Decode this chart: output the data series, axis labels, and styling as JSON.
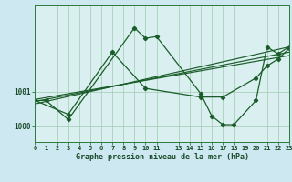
{
  "xlabel": "Graphe pression niveau de la mer (hPa)",
  "bg_color": "#cde8f0",
  "plot_bg_color": "#daf0f0",
  "grid_color": "#aacfbb",
  "line_color": "#1a5c2a",
  "xlim": [
    0,
    23
  ],
  "ylim": [
    999.55,
    1003.5
  ],
  "xticks": [
    0,
    1,
    2,
    3,
    4,
    5,
    6,
    7,
    8,
    9,
    10,
    11,
    13,
    14,
    15,
    16,
    17,
    18,
    19,
    20,
    21,
    22,
    23
  ],
  "yticks": [
    1000,
    1001
  ],
  "series1_x": [
    0,
    1,
    3,
    9,
    10,
    11,
    15,
    16,
    17,
    18,
    20,
    21,
    22,
    23
  ],
  "series1_y": [
    1000.75,
    1000.75,
    1000.2,
    1002.85,
    1002.55,
    1002.6,
    1000.95,
    1000.3,
    1000.05,
    1000.05,
    1000.75,
    1002.3,
    1002.1,
    1002.3
  ],
  "series2_x": [
    0,
    3,
    7,
    10,
    15,
    17,
    20,
    21,
    22,
    23
  ],
  "series2_y": [
    1000.75,
    1000.35,
    1002.15,
    1001.1,
    1000.85,
    1000.85,
    1001.4,
    1001.75,
    1001.95,
    1002.25
  ],
  "trend1_x": [
    0,
    23
  ],
  "trend1_y": [
    1000.65,
    1002.3
  ],
  "trend2_x": [
    0,
    23
  ],
  "trend2_y": [
    1000.72,
    1002.15
  ],
  "trend3_x": [
    0,
    23
  ],
  "trend3_y": [
    1000.78,
    1002.05
  ]
}
